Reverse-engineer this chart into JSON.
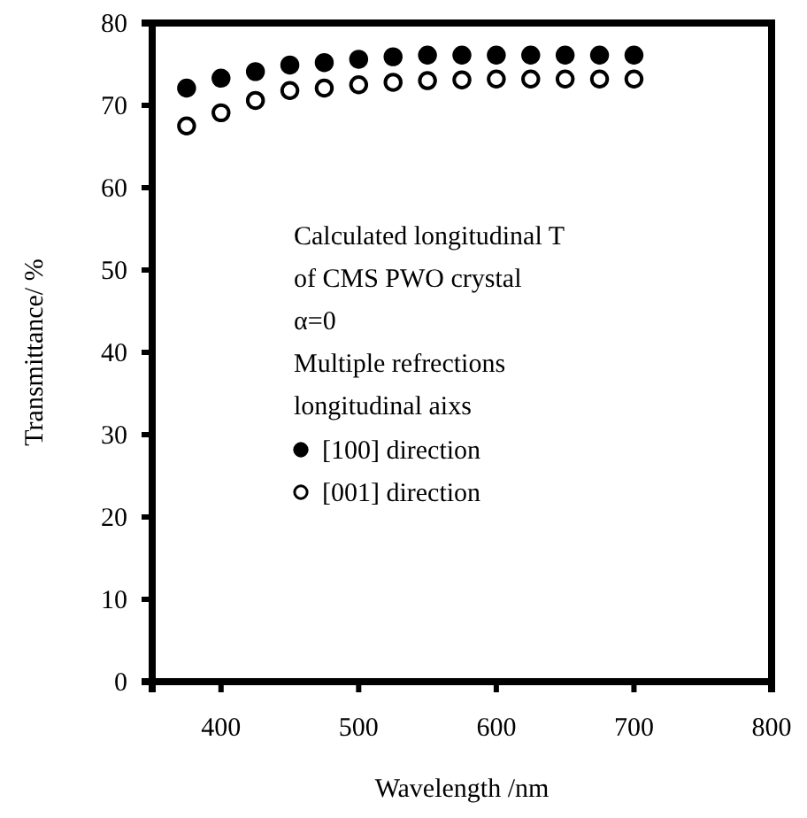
{
  "chart_data": {
    "type": "scatter",
    "xlabel": "Wavelength /nm",
    "ylabel": "Transmittance/ %",
    "x": [
      375,
      400,
      425,
      450,
      475,
      500,
      525,
      550,
      575,
      600,
      625,
      650,
      675,
      700
    ],
    "series": [
      {
        "name": "[100]  direction",
        "color": "#000000",
        "marker": "circle",
        "values": [
          72.1,
          73.3,
          74.1,
          74.9,
          75.2,
          75.6,
          75.9,
          76.1,
          76.1,
          76.1,
          76.1,
          76.1,
          76.1,
          76.1
        ]
      },
      {
        "name": "[001]  direction",
        "color": "#ffffff",
        "marker": "circle",
        "values": [
          67.5,
          69.1,
          70.6,
          71.8,
          72.1,
          72.5,
          72.8,
          73.0,
          73.1,
          73.2,
          73.2,
          73.2,
          73.2,
          73.2
        ]
      }
    ],
    "xlim": [
      350,
      800
    ],
    "xticks": [
      400,
      500,
      600,
      700,
      800
    ],
    "ylim": [
      0,
      80
    ],
    "yticks": [
      0,
      10,
      20,
      30,
      40,
      50,
      60,
      70,
      80
    ],
    "annotations": [
      "Calculated longitudinal T",
      "of CMS PWO crystal",
      "α=0",
      "Multiple refrections",
      "longitudinal aixs"
    ],
    "legend": "center",
    "grid": false
  }
}
